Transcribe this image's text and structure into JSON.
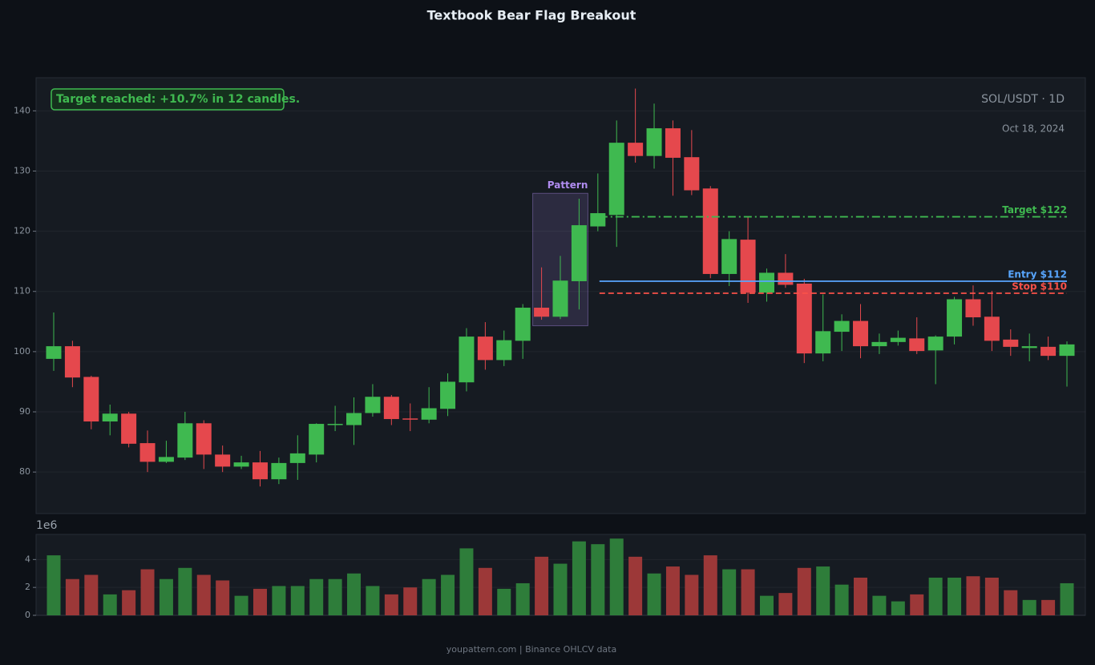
{
  "chart_data": [
    {
      "type": "candlestick",
      "title": "Textbook Bear Flag Breakout",
      "annotation": "Target reached: +10.7% in 12 candles.",
      "symbol": "SOL/USDT · 1D",
      "date": "Oct 18, 2024",
      "open": [
        98.8,
        100.9,
        95.8,
        88.4,
        89.7,
        84.8,
        81.7,
        82.4,
        88.1,
        82.9,
        80.9,
        81.6,
        78.8,
        81.5,
        82.9,
        87.8,
        87.8,
        89.8,
        92.5,
        88.9,
        88.7,
        90.5,
        94.9,
        102.5,
        98.6,
        101.8,
        107.3,
        105.8,
        111.7,
        120.8,
        122.7,
        134.7,
        132.5,
        137.1,
        132.3,
        127.1,
        112.9,
        118.6,
        109.8,
        113.1,
        111.3,
        99.7,
        103.3,
        105.1,
        100.9,
        101.6,
        102.2,
        100.2,
        102.5,
        108.7,
        105.8,
        102,
        100.6,
        100.8,
        99.3
      ],
      "high": [
        106.5,
        101.8,
        96,
        91.2,
        90,
        86.9,
        85.2,
        90,
        88.6,
        84.4,
        82.7,
        83.5,
        82.4,
        86.1,
        88.1,
        91,
        92.4,
        94.6,
        92.8,
        91.4,
        94.1,
        96.4,
        103.9,
        104.9,
        103.5,
        107.9,
        114,
        115.9,
        125.4,
        129.6,
        138.4,
        143.7,
        141.2,
        138.4,
        136.8,
        127.5,
        120,
        122.4,
        113.8,
        116.2,
        112.1,
        109.5,
        106.2,
        107.9,
        103,
        103.5,
        105.7,
        102.7,
        109.1,
        111,
        110.1,
        103.7,
        103,
        102.5,
        101.7
      ],
      "low": [
        96.8,
        94.1,
        87.1,
        86.1,
        84.1,
        80,
        81.5,
        82,
        80.5,
        80,
        80.5,
        77.6,
        78,
        78.7,
        81.6,
        86.8,
        84.5,
        89.2,
        87.8,
        86.8,
        88.1,
        89.3,
        93.4,
        97,
        97.6,
        98.8,
        105.3,
        105.4,
        107,
        120,
        117.4,
        131.4,
        130.4,
        125.9,
        126,
        112.2,
        110.9,
        108.1,
        108.3,
        110.6,
        98.1,
        98.4,
        100.1,
        98.9,
        99.6,
        101,
        99.6,
        94.6,
        101.2,
        104.3,
        100.1,
        99.3,
        98.4,
        98.6,
        94.2
      ],
      "close": [
        100.9,
        95.7,
        88.4,
        89.7,
        84.7,
        81.7,
        82.5,
        88.1,
        82.9,
        80.9,
        81.6,
        78.8,
        81.5,
        83.1,
        88,
        88.0,
        89.8,
        92.5,
        88.8,
        88.7,
        90.6,
        95,
        102.5,
        98.6,
        101.9,
        107.3,
        105.8,
        111.8,
        121,
        123,
        134.7,
        132.5,
        137.1,
        132.2,
        126.8,
        112.9,
        118.7,
        109.8,
        113.1,
        111.1,
        99.7,
        103.4,
        105.1,
        100.9,
        101.6,
        102.3,
        100.1,
        102.5,
        108.7,
        105.7,
        101.8,
        100.8,
        100.9,
        99.3,
        101.2
      ],
      "up_color": "#3fb950",
      "down_color": "#e5484d",
      "ylim": [
        73.1,
        145.5
      ],
      "yticks": [
        80,
        90,
        100,
        110,
        120,
        130,
        140
      ],
      "grid": true,
      "pattern": {
        "label": "Pattern",
        "high": 126.3,
        "low": 104.3,
        "color": "#b08cf0"
      },
      "levels": [
        {
          "label": "Target $122",
          "value": 122.4,
          "color": "#3fb950",
          "style": "dashdot"
        },
        {
          "label": "Entry $112",
          "value": 111.7,
          "color": "#58a6ff",
          "style": "solid"
        },
        {
          "label": "Stop $110",
          "value": 109.7,
          "color": "#f85149",
          "style": "dashed"
        }
      ]
    },
    {
      "type": "bar",
      "offset_label": "1e6",
      "values": [
        4.3,
        2.6,
        2.9,
        1.5,
        1.8,
        3.3,
        2.6,
        3.4,
        2.9,
        2.5,
        1.4,
        1.9,
        2.1,
        2.1,
        2.6,
        2.6,
        3.0,
        2.1,
        1.5,
        2.0,
        2.6,
        2.9,
        4.8,
        3.4,
        1.9,
        2.3,
        4.2,
        3.7,
        5.3,
        5.1,
        5.5,
        4.2,
        3.0,
        3.5,
        2.9,
        4.3,
        3.3,
        3.3,
        1.4,
        1.6,
        3.4,
        3.5,
        2.2,
        2.7,
        1.4,
        1.0,
        1.5,
        2.7,
        2.7,
        2.8,
        2.7,
        1.8,
        1.1,
        1.1,
        2.3
      ],
      "up_color": "#2e7d3a",
      "down_color": "#9c3838",
      "ylim": [
        0,
        5.8
      ],
      "yticks": [
        0,
        2,
        4
      ],
      "grid": true
    }
  ],
  "footer": "youpattern.com | Binance OHLCV data"
}
